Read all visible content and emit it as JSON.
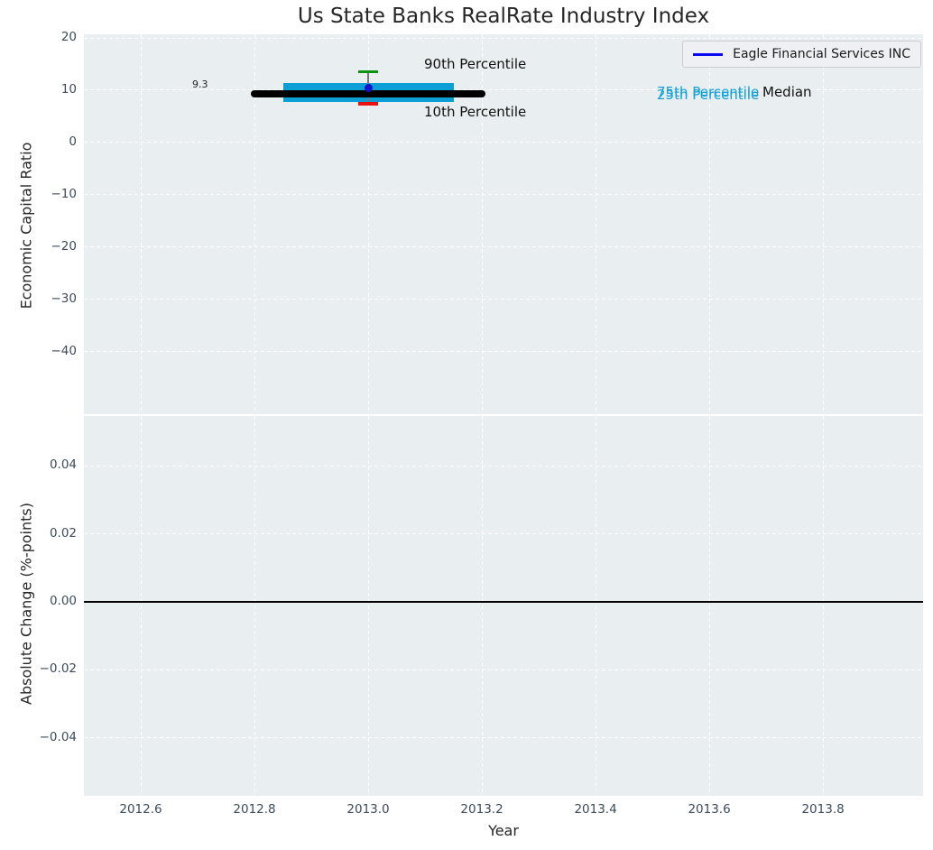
{
  "title": "Us State Banks RealRate Industry Index",
  "legend": {
    "position": "upper right",
    "entries": [
      {
        "label": "Eagle Financial Services INC",
        "color": "#0a0af0",
        "marker": "line"
      }
    ]
  },
  "colors": {
    "figure_background": "#ffffff",
    "axes_background": "#e9eef0",
    "grid": "#ffffff",
    "tick_label": "#3d4b5c",
    "text": "#262626",
    "percentile_box": "#0c9fd6",
    "median_line": "#000000",
    "p90_cap": "#0d930d",
    "p10_cap": "#e81212",
    "whisker": "#787878",
    "company_marker": "#1414cc",
    "zero_line": "#000000"
  },
  "chart_data": [
    {
      "type": "scatter",
      "panel": "top",
      "title": "Us State Banks RealRate Industry Index",
      "xlabel": "",
      "ylabel": "Economic Capital Ratio",
      "xlim": [
        2012.5,
        2013.976
      ],
      "ylim": [
        -52,
        20.7
      ],
      "xticks": [
        2012.6,
        2012.8,
        2013.0,
        2013.2,
        2013.4,
        2013.6,
        2013.8
      ],
      "xtick_labels": [
        "2012.6",
        "2012.8",
        "2013.0",
        "2013.2",
        "2013.4",
        "2013.6",
        "2013.8"
      ],
      "yticks": [
        20,
        10,
        0,
        -10,
        -20,
        -30,
        -40
      ],
      "ytick_labels": [
        "20",
        "10",
        "0",
        "−10",
        "−20",
        "−30",
        "−40"
      ],
      "grid": true,
      "legend_position": "upper right",
      "series": [
        {
          "name": "Eagle Financial Services INC",
          "type": "scatter",
          "x": [
            2013.0
          ],
          "y": [
            10.4
          ],
          "color": "#1414cc"
        }
      ],
      "percentile_band": {
        "year": 2013.0,
        "p90": 13.5,
        "p75": 11.4,
        "median": 9.3,
        "p25": 7.8,
        "p10": 7.4,
        "box_x_range": [
          2012.85,
          2013.15
        ],
        "median_x_range": [
          2012.8,
          2013.2
        ]
      },
      "annotations": {
        "p90_label": "90th Percentile",
        "p10_label": "10th Percentile",
        "p75_label": "75th Percentile",
        "p25_label": "25th Percentile",
        "median_label": "Median",
        "median_value": "9.3"
      }
    },
    {
      "type": "line",
      "panel": "bottom",
      "xlabel": "Year",
      "ylabel": "Absolute Change (%-points)",
      "xlim": [
        2012.5,
        2013.976
      ],
      "ylim": [
        -0.057,
        0.0546
      ],
      "xticks": [
        2012.6,
        2012.8,
        2013.0,
        2013.2,
        2013.4,
        2013.6,
        2013.8
      ],
      "xtick_labels": [
        "2012.6",
        "2012.8",
        "2013.0",
        "2013.2",
        "2013.4",
        "2013.6",
        "2013.8"
      ],
      "yticks": [
        0.04,
        0.02,
        0.0,
        -0.02,
        -0.04
      ],
      "ytick_labels": [
        "0.04",
        "0.02",
        "0.00",
        "−0.02",
        "−0.04"
      ],
      "grid": true,
      "zero_line": 0.0,
      "series": []
    }
  ]
}
